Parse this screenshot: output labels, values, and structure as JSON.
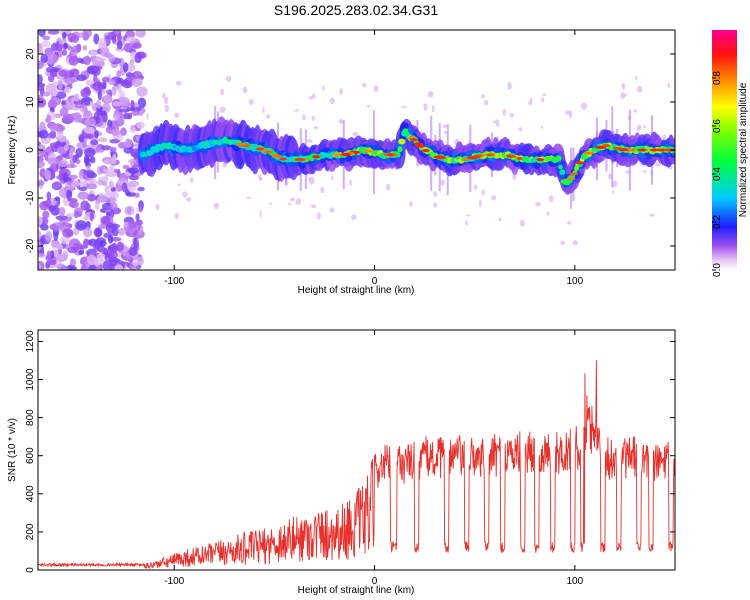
{
  "chart_data": [
    {
      "type": "heatmap",
      "title": "S196.2025.283.02.34.G31",
      "xlabel": "Height of straight line (km)",
      "ylabel": "Frequency (Hz)",
      "xlim": [
        -168,
        150
      ],
      "ylim": [
        -25,
        25
      ],
      "xticks": [
        -100,
        0,
        100
      ],
      "yticks": [
        -20,
        -10,
        0,
        10,
        20
      ],
      "colorbar": {
        "label": "Normalized spectral amplitude",
        "ticks": [
          0.0,
          0.2,
          0.4,
          0.6,
          0.8
        ],
        "range": [
          0,
          1
        ]
      },
      "ridge": {
        "x": [
          -115,
          -105,
          -95,
          -85,
          -75,
          -65,
          -55,
          -45,
          -35,
          -25,
          -15,
          -5,
          5,
          12,
          15,
          25,
          35,
          45,
          55,
          65,
          75,
          85,
          92,
          95,
          98,
          105,
          115,
          125,
          135,
          148
        ],
        "y": [
          -1,
          1,
          0,
          1,
          2,
          1,
          0,
          -2,
          -2,
          -1,
          -1,
          0,
          -1,
          -1,
          4,
          0,
          -2,
          -2,
          -1,
          -1,
          -2,
          -2,
          -2,
          -7,
          -6,
          -1,
          1,
          0,
          0,
          0
        ]
      }
    },
    {
      "type": "line",
      "xlabel": "Height of straight line (km)",
      "ylabel": "SNR (10 * v/v)",
      "xlim": [
        -168,
        150
      ],
      "ylim": [
        0,
        1260
      ],
      "xticks": [
        -100,
        0,
        100
      ],
      "yticks": [
        0,
        200,
        400,
        600,
        800,
        1000,
        1200
      ],
      "series": [
        {
          "name": "SNR",
          "color": "#e8302c",
          "x": [
            -168,
            -150,
            -130,
            -115,
            -105,
            -95,
            -85,
            -75,
            -65,
            -55,
            -45,
            -35,
            -25,
            -15,
            -5,
            0,
            5,
            10,
            15,
            20,
            25,
            30,
            40,
            50,
            60,
            70,
            80,
            90,
            100,
            105,
            108,
            110,
            112,
            115,
            120,
            130,
            140,
            145,
            150
          ],
          "y": [
            30,
            30,
            30,
            30,
            60,
            100,
            120,
            150,
            180,
            200,
            240,
            280,
            300,
            330,
            420,
            560,
            600,
            620,
            600,
            620,
            640,
            630,
            650,
            640,
            650,
            660,
            670,
            660,
            680,
            750,
            900,
            800,
            700,
            640,
            620,
            640,
            600,
            620,
            600
          ]
        }
      ]
    }
  ]
}
